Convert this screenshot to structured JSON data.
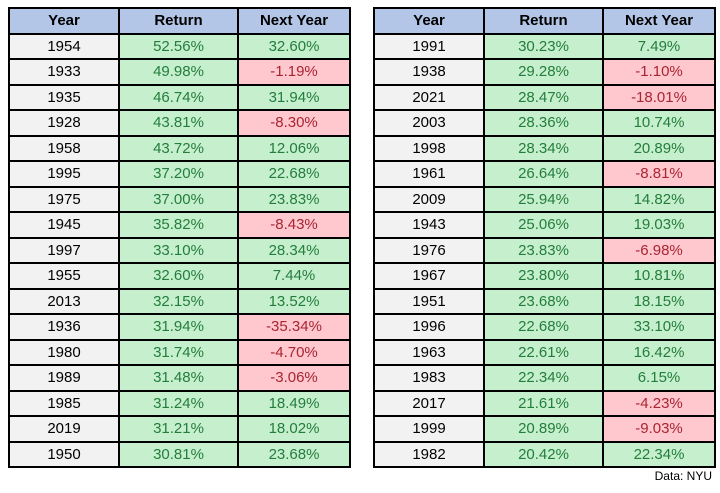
{
  "meta": {
    "source_note": "Data: NYU"
  },
  "colors": {
    "header_bg": "#b4c6e7",
    "year_bg": "#f2f2f2",
    "positive_bg": "#c6efce",
    "positive_text": "#237d3b",
    "negative_bg": "#ffc7ce",
    "negative_text": "#a82532",
    "border": "#000000"
  },
  "chart_data": [
    {
      "type": "table",
      "columns": [
        "Year",
        "Return",
        "Next Year"
      ],
      "rows": [
        [
          "1954",
          "52.56%",
          "32.60%"
        ],
        [
          "1933",
          "49.98%",
          "-1.19%"
        ],
        [
          "1935",
          "46.74%",
          "31.94%"
        ],
        [
          "1928",
          "43.81%",
          "-8.30%"
        ],
        [
          "1958",
          "43.72%",
          "12.06%"
        ],
        [
          "1995",
          "37.20%",
          "22.68%"
        ],
        [
          "1975",
          "37.00%",
          "23.83%"
        ],
        [
          "1945",
          "35.82%",
          "-8.43%"
        ],
        [
          "1997",
          "33.10%",
          "28.34%"
        ],
        [
          "1955",
          "32.60%",
          "7.44%"
        ],
        [
          "2013",
          "32.15%",
          "13.52%"
        ],
        [
          "1936",
          "31.94%",
          "-35.34%"
        ],
        [
          "1980",
          "31.74%",
          "-4.70%"
        ],
        [
          "1989",
          "31.48%",
          "-3.06%"
        ],
        [
          "1985",
          "31.24%",
          "18.49%"
        ],
        [
          "2019",
          "31.21%",
          "18.02%"
        ],
        [
          "1950",
          "30.81%",
          "23.68%"
        ]
      ]
    },
    {
      "type": "table",
      "columns": [
        "Year",
        "Return",
        "Next Year"
      ],
      "rows": [
        [
          "1991",
          "30.23%",
          "7.49%"
        ],
        [
          "1938",
          "29.28%",
          "-1.10%"
        ],
        [
          "2021",
          "28.47%",
          "-18.01%"
        ],
        [
          "2003",
          "28.36%",
          "10.74%"
        ],
        [
          "1998",
          "28.34%",
          "20.89%"
        ],
        [
          "1961",
          "26.64%",
          "-8.81%"
        ],
        [
          "2009",
          "25.94%",
          "14.82%"
        ],
        [
          "1943",
          "25.06%",
          "19.03%"
        ],
        [
          "1976",
          "23.83%",
          "-6.98%"
        ],
        [
          "1967",
          "23.80%",
          "10.81%"
        ],
        [
          "1951",
          "23.68%",
          "18.15%"
        ],
        [
          "1996",
          "22.68%",
          "33.10%"
        ],
        [
          "1963",
          "22.61%",
          "16.42%"
        ],
        [
          "1983",
          "22.34%",
          "6.15%"
        ],
        [
          "2017",
          "21.61%",
          "-4.23%"
        ],
        [
          "1999",
          "20.89%",
          "-9.03%"
        ],
        [
          "1982",
          "20.42%",
          "22.34%"
        ]
      ]
    }
  ]
}
